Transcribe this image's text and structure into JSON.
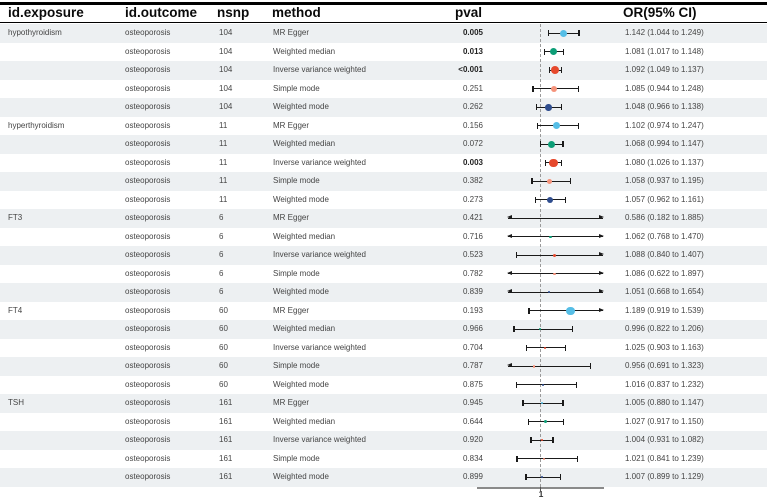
{
  "header": {
    "exposure": "id.exposure",
    "outcome": "id.outcome",
    "nsnp": "nsnp",
    "method": "method",
    "pval": "pval",
    "or_ci": "OR(95% CI)"
  },
  "axis": {
    "tick": "1"
  },
  "colors": {
    "alt_row_bg": "#edf0f2",
    "line": "#1a1a1a",
    "reference_line": "#9a9a9a",
    "axis_line": "#8a8a8a",
    "methods": {
      "MR Egger": "#56BEE6",
      "Weighted median": "#0D9E77",
      "Inverse variance weighted": "#E6492D",
      "Simple mode": "#F5937B",
      "Weighted mode": "#2F4D8E"
    }
  },
  "chart_data": {
    "type": "forest",
    "title": "",
    "columns": [
      "id.exposure",
      "id.outcome",
      "nsnp",
      "method",
      "pval",
      "OR(95% CI)"
    ],
    "x_axis": {
      "scale": "linear",
      "reference": 1,
      "tick_labels": [
        "1"
      ],
      "clip_min": 0.787,
      "clip_max": 1.401
    },
    "rows": [
      {
        "exposure": "hypothyroidism",
        "outcome": "osteoporosis",
        "nsnp": "104",
        "method": "MR Egger",
        "pval": "0.005",
        "bold": true,
        "or": 1.142,
        "ci_low": 1.044,
        "ci_high": 1.249,
        "or_ci": "1.142 (1.044 to 1.249)",
        "point_size": 7
      },
      {
        "exposure": "",
        "outcome": "osteoporosis",
        "nsnp": "104",
        "method": "Weighted median",
        "pval": "0.013",
        "bold": true,
        "or": 1.081,
        "ci_low": 1.017,
        "ci_high": 1.148,
        "or_ci": "1.081 (1.017 to 1.148)",
        "point_size": 7
      },
      {
        "exposure": "",
        "outcome": "osteoporosis",
        "nsnp": "104",
        "method": "Inverse variance weighted",
        "pval": "<0.001",
        "bold": true,
        "or": 1.092,
        "ci_low": 1.049,
        "ci_high": 1.137,
        "or_ci": "1.092 (1.049 to 1.137)",
        "point_size": 8
      },
      {
        "exposure": "",
        "outcome": "osteoporosis",
        "nsnp": "104",
        "method": "Simple mode",
        "pval": "0.251",
        "bold": false,
        "or": 1.085,
        "ci_low": 0.944,
        "ci_high": 1.248,
        "or_ci": "1.085 (0.944 to 1.248)",
        "point_size": 6
      },
      {
        "exposure": "",
        "outcome": "osteoporosis",
        "nsnp": "104",
        "method": "Weighted mode",
        "pval": "0.262",
        "bold": false,
        "or": 1.048,
        "ci_low": 0.966,
        "ci_high": 1.138,
        "or_ci": "1.048 (0.966 to 1.138)",
        "point_size": 6.5
      },
      {
        "exposure": "hyperthyroidism",
        "outcome": "osteoporosis",
        "nsnp": "11",
        "method": "MR Egger",
        "pval": "0.156",
        "bold": false,
        "or": 1.102,
        "ci_low": 0.974,
        "ci_high": 1.247,
        "or_ci": "1.102 (0.974 to 1.247)",
        "point_size": 7
      },
      {
        "exposure": "",
        "outcome": "osteoporosis",
        "nsnp": "11",
        "method": "Weighted median",
        "pval": "0.072",
        "bold": false,
        "or": 1.068,
        "ci_low": 0.994,
        "ci_high": 1.147,
        "or_ci": "1.068 (0.994 to 1.147)",
        "point_size": 7
      },
      {
        "exposure": "",
        "outcome": "osteoporosis",
        "nsnp": "11",
        "method": "Inverse variance weighted",
        "pval": "0.003",
        "bold": true,
        "or": 1.08,
        "ci_low": 1.026,
        "ci_high": 1.137,
        "or_ci": "1.080 (1.026 to 1.137)",
        "point_size": 8.5
      },
      {
        "exposure": "",
        "outcome": "osteoporosis",
        "nsnp": "11",
        "method": "Simple mode",
        "pval": "0.382",
        "bold": false,
        "or": 1.058,
        "ci_low": 0.937,
        "ci_high": 1.195,
        "or_ci": "1.058 (0.937 to 1.195)",
        "point_size": 5
      },
      {
        "exposure": "",
        "outcome": "osteoporosis",
        "nsnp": "11",
        "method": "Weighted mode",
        "pval": "0.273",
        "bold": false,
        "or": 1.057,
        "ci_low": 0.962,
        "ci_high": 1.161,
        "or_ci": "1.057 (0.962 to 1.161)",
        "point_size": 6.5
      },
      {
        "exposure": "FT3",
        "outcome": "osteoporosis",
        "nsnp": "6",
        "method": "MR Egger",
        "pval": "0.421",
        "bold": false,
        "or": 0.586,
        "ci_low": 0.182,
        "ci_high": 1.885,
        "or_ci": "0.586 (0.182 to 1.885)",
        "point_size": 2
      },
      {
        "exposure": "",
        "outcome": "osteoporosis",
        "nsnp": "6",
        "method": "Weighted median",
        "pval": "0.716",
        "bold": false,
        "or": 1.062,
        "ci_low": 0.768,
        "ci_high": 1.47,
        "or_ci": "1.062 (0.768 to 1.470)",
        "point_size": 2.5
      },
      {
        "exposure": "",
        "outcome": "osteoporosis",
        "nsnp": "6",
        "method": "Inverse variance weighted",
        "pval": "0.523",
        "bold": false,
        "or": 1.088,
        "ci_low": 0.84,
        "ci_high": 1.407,
        "or_ci": "1.088 (0.840 to 1.407)",
        "point_size": 3.5
      },
      {
        "exposure": "",
        "outcome": "osteoporosis",
        "nsnp": "6",
        "method": "Simple mode",
        "pval": "0.782",
        "bold": false,
        "or": 1.086,
        "ci_low": 0.622,
        "ci_high": 1.897,
        "or_ci": "1.086 (0.622 to 1.897)",
        "point_size": 2.5
      },
      {
        "exposure": "",
        "outcome": "osteoporosis",
        "nsnp": "6",
        "method": "Weighted mode",
        "pval": "0.839",
        "bold": false,
        "or": 1.051,
        "ci_low": 0.668,
        "ci_high": 1.654,
        "or_ci": "1.051 (0.668 to 1.654)",
        "point_size": 2
      },
      {
        "exposure": "FT4",
        "outcome": "osteoporosis",
        "nsnp": "60",
        "method": "MR Egger",
        "pval": "0.193",
        "bold": false,
        "or": 1.189,
        "ci_low": 0.919,
        "ci_high": 1.539,
        "or_ci": "1.189 (0.919 to 1.539)",
        "point_size": 8.5
      },
      {
        "exposure": "",
        "outcome": "osteoporosis",
        "nsnp": "60",
        "method": "Weighted median",
        "pval": "0.966",
        "bold": false,
        "or": 0.996,
        "ci_low": 0.822,
        "ci_high": 1.206,
        "or_ci": "0.996 (0.822 to 1.206)",
        "point_size": 2
      },
      {
        "exposure": "",
        "outcome": "osteoporosis",
        "nsnp": "60",
        "method": "Inverse variance weighted",
        "pval": "0.704",
        "bold": false,
        "or": 1.025,
        "ci_low": 0.903,
        "ci_high": 1.163,
        "or_ci": "1.025 (0.903 to 1.163)",
        "point_size": 2.5
      },
      {
        "exposure": "",
        "outcome": "osteoporosis",
        "nsnp": "60",
        "method": "Simple mode",
        "pval": "0.787",
        "bold": false,
        "or": 0.956,
        "ci_low": 0.691,
        "ci_high": 1.323,
        "or_ci": "0.956 (0.691 to 1.323)",
        "point_size": 2.5
      },
      {
        "exposure": "",
        "outcome": "osteoporosis",
        "nsnp": "60",
        "method": "Weighted mode",
        "pval": "0.875",
        "bold": false,
        "or": 1.016,
        "ci_low": 0.837,
        "ci_high": 1.232,
        "or_ci": "1.016 (0.837 to 1.232)",
        "point_size": 2
      },
      {
        "exposure": "TSH",
        "outcome": "osteoporosis",
        "nsnp": "161",
        "method": "MR Egger",
        "pval": "0.945",
        "bold": false,
        "or": 1.005,
        "ci_low": 0.88,
        "ci_high": 1.147,
        "or_ci": "1.005 (0.880 to 1.147)",
        "point_size": 2
      },
      {
        "exposure": "",
        "outcome": "osteoporosis",
        "nsnp": "161",
        "method": "Weighted median",
        "pval": "0.644",
        "bold": false,
        "or": 1.027,
        "ci_low": 0.917,
        "ci_high": 1.15,
        "or_ci": "1.027 (0.917 to 1.150)",
        "point_size": 3
      },
      {
        "exposure": "",
        "outcome": "osteoporosis",
        "nsnp": "161",
        "method": "Inverse variance weighted",
        "pval": "0.920",
        "bold": false,
        "or": 1.004,
        "ci_low": 0.931,
        "ci_high": 1.082,
        "or_ci": "1.004 (0.931 to 1.082)",
        "point_size": 2
      },
      {
        "exposure": "",
        "outcome": "osteoporosis",
        "nsnp": "161",
        "method": "Simple mode",
        "pval": "0.834",
        "bold": false,
        "or": 1.021,
        "ci_low": 0.841,
        "ci_high": 1.239,
        "or_ci": "1.021 (0.841 to 1.239)",
        "point_size": 2
      },
      {
        "exposure": "",
        "outcome": "osteoporosis",
        "nsnp": "161",
        "method": "Weighted mode",
        "pval": "0.899",
        "bold": false,
        "or": 1.007,
        "ci_low": 0.899,
        "ci_high": 1.129,
        "or_ci": "1.007 (0.899 to 1.129)",
        "point_size": 2
      }
    ]
  }
}
